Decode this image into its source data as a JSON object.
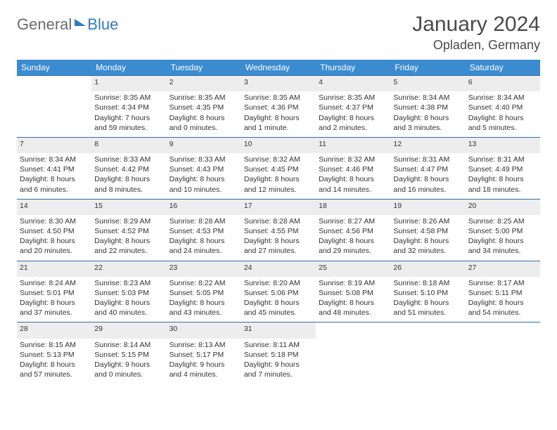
{
  "logo": {
    "part1": "General",
    "part2": "Blue"
  },
  "header": {
    "title": "January 2024",
    "location": "Opladen, Germany"
  },
  "style": {
    "header_bg": "#3b8bd0",
    "header_fg": "#ffffff",
    "daynum_bg": "#ededed",
    "row_border": "#2f6fa8",
    "text_color": "#333333",
    "logo_blue": "#2f7bbf",
    "logo_gray": "#6b6b6b"
  },
  "weekdays": [
    "Sunday",
    "Monday",
    "Tuesday",
    "Wednesday",
    "Thursday",
    "Friday",
    "Saturday"
  ],
  "weeks": [
    {
      "nums": [
        "",
        "1",
        "2",
        "3",
        "4",
        "5",
        "6"
      ],
      "cells": [
        {
          "empty": true
        },
        {
          "sunrise": "Sunrise: 8:35 AM",
          "sunset": "Sunset: 4:34 PM",
          "daylight": "Daylight: 7 hours and 59 minutes."
        },
        {
          "sunrise": "Sunrise: 8:35 AM",
          "sunset": "Sunset: 4:35 PM",
          "daylight": "Daylight: 8 hours and 0 minutes."
        },
        {
          "sunrise": "Sunrise: 8:35 AM",
          "sunset": "Sunset: 4:36 PM",
          "daylight": "Daylight: 8 hours and 1 minute."
        },
        {
          "sunrise": "Sunrise: 8:35 AM",
          "sunset": "Sunset: 4:37 PM",
          "daylight": "Daylight: 8 hours and 2 minutes."
        },
        {
          "sunrise": "Sunrise: 8:34 AM",
          "sunset": "Sunset: 4:38 PM",
          "daylight": "Daylight: 8 hours and 3 minutes."
        },
        {
          "sunrise": "Sunrise: 8:34 AM",
          "sunset": "Sunset: 4:40 PM",
          "daylight": "Daylight: 8 hours and 5 minutes."
        }
      ]
    },
    {
      "nums": [
        "7",
        "8",
        "9",
        "10",
        "11",
        "12",
        "13"
      ],
      "cells": [
        {
          "sunrise": "Sunrise: 8:34 AM",
          "sunset": "Sunset: 4:41 PM",
          "daylight": "Daylight: 8 hours and 6 minutes."
        },
        {
          "sunrise": "Sunrise: 8:33 AM",
          "sunset": "Sunset: 4:42 PM",
          "daylight": "Daylight: 8 hours and 8 minutes."
        },
        {
          "sunrise": "Sunrise: 8:33 AM",
          "sunset": "Sunset: 4:43 PM",
          "daylight": "Daylight: 8 hours and 10 minutes."
        },
        {
          "sunrise": "Sunrise: 8:32 AM",
          "sunset": "Sunset: 4:45 PM",
          "daylight": "Daylight: 8 hours and 12 minutes."
        },
        {
          "sunrise": "Sunrise: 8:32 AM",
          "sunset": "Sunset: 4:46 PM",
          "daylight": "Daylight: 8 hours and 14 minutes."
        },
        {
          "sunrise": "Sunrise: 8:31 AM",
          "sunset": "Sunset: 4:47 PM",
          "daylight": "Daylight: 8 hours and 16 minutes."
        },
        {
          "sunrise": "Sunrise: 8:31 AM",
          "sunset": "Sunset: 4:49 PM",
          "daylight": "Daylight: 8 hours and 18 minutes."
        }
      ]
    },
    {
      "nums": [
        "14",
        "15",
        "16",
        "17",
        "18",
        "19",
        "20"
      ],
      "cells": [
        {
          "sunrise": "Sunrise: 8:30 AM",
          "sunset": "Sunset: 4:50 PM",
          "daylight": "Daylight: 8 hours and 20 minutes."
        },
        {
          "sunrise": "Sunrise: 8:29 AM",
          "sunset": "Sunset: 4:52 PM",
          "daylight": "Daylight: 8 hours and 22 minutes."
        },
        {
          "sunrise": "Sunrise: 8:28 AM",
          "sunset": "Sunset: 4:53 PM",
          "daylight": "Daylight: 8 hours and 24 minutes."
        },
        {
          "sunrise": "Sunrise: 8:28 AM",
          "sunset": "Sunset: 4:55 PM",
          "daylight": "Daylight: 8 hours and 27 minutes."
        },
        {
          "sunrise": "Sunrise: 8:27 AM",
          "sunset": "Sunset: 4:56 PM",
          "daylight": "Daylight: 8 hours and 29 minutes."
        },
        {
          "sunrise": "Sunrise: 8:26 AM",
          "sunset": "Sunset: 4:58 PM",
          "daylight": "Daylight: 8 hours and 32 minutes."
        },
        {
          "sunrise": "Sunrise: 8:25 AM",
          "sunset": "Sunset: 5:00 PM",
          "daylight": "Daylight: 8 hours and 34 minutes."
        }
      ]
    },
    {
      "nums": [
        "21",
        "22",
        "23",
        "24",
        "25",
        "26",
        "27"
      ],
      "cells": [
        {
          "sunrise": "Sunrise: 8:24 AM",
          "sunset": "Sunset: 5:01 PM",
          "daylight": "Daylight: 8 hours and 37 minutes."
        },
        {
          "sunrise": "Sunrise: 8:23 AM",
          "sunset": "Sunset: 5:03 PM",
          "daylight": "Daylight: 8 hours and 40 minutes."
        },
        {
          "sunrise": "Sunrise: 8:22 AM",
          "sunset": "Sunset: 5:05 PM",
          "daylight": "Daylight: 8 hours and 43 minutes."
        },
        {
          "sunrise": "Sunrise: 8:20 AM",
          "sunset": "Sunset: 5:06 PM",
          "daylight": "Daylight: 8 hours and 45 minutes."
        },
        {
          "sunrise": "Sunrise: 8:19 AM",
          "sunset": "Sunset: 5:08 PM",
          "daylight": "Daylight: 8 hours and 48 minutes."
        },
        {
          "sunrise": "Sunrise: 8:18 AM",
          "sunset": "Sunset: 5:10 PM",
          "daylight": "Daylight: 8 hours and 51 minutes."
        },
        {
          "sunrise": "Sunrise: 8:17 AM",
          "sunset": "Sunset: 5:11 PM",
          "daylight": "Daylight: 8 hours and 54 minutes."
        }
      ]
    },
    {
      "nums": [
        "28",
        "29",
        "30",
        "31",
        "",
        "",
        ""
      ],
      "cells": [
        {
          "sunrise": "Sunrise: 8:15 AM",
          "sunset": "Sunset: 5:13 PM",
          "daylight": "Daylight: 8 hours and 57 minutes."
        },
        {
          "sunrise": "Sunrise: 8:14 AM",
          "sunset": "Sunset: 5:15 PM",
          "daylight": "Daylight: 9 hours and 0 minutes."
        },
        {
          "sunrise": "Sunrise: 8:13 AM",
          "sunset": "Sunset: 5:17 PM",
          "daylight": "Daylight: 9 hours and 4 minutes."
        },
        {
          "sunrise": "Sunrise: 8:11 AM",
          "sunset": "Sunset: 5:18 PM",
          "daylight": "Daylight: 9 hours and 7 minutes."
        },
        {
          "empty": true
        },
        {
          "empty": true
        },
        {
          "empty": true
        }
      ]
    }
  ]
}
